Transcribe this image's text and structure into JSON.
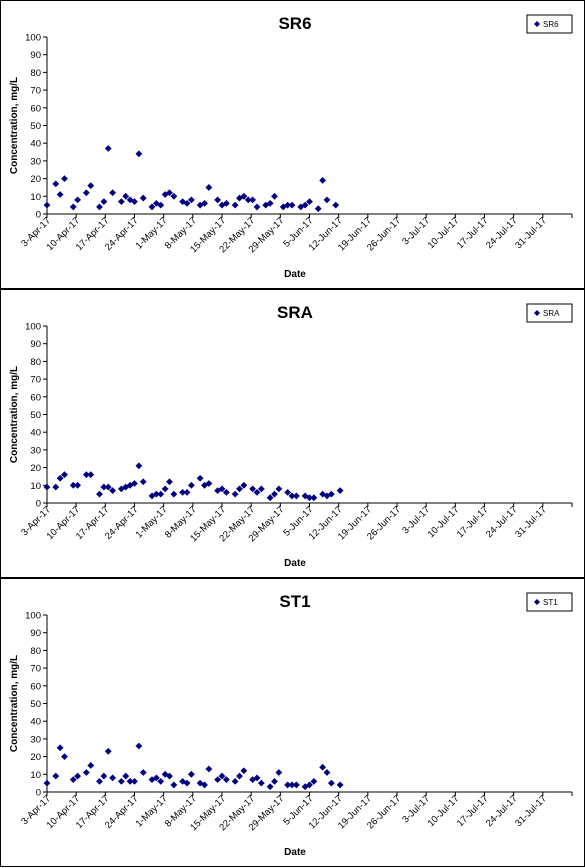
{
  "chart_data": [
    {
      "type": "scatter",
      "title": "SR6",
      "xlabel": "Date",
      "ylabel": "Concentration, mg/L",
      "ylim": [
        0,
        100
      ],
      "yticks": [
        "0",
        "10",
        "20",
        "30",
        "40",
        "50",
        "60",
        "70",
        "80",
        "90",
        "100"
      ],
      "xticks": [
        "3-Apr-17",
        "10-Apr-17",
        "17-Apr-17",
        "24-Apr-17",
        "1-May-17",
        "8-May-17",
        "15-May-17",
        "22-May-17",
        "29-May-17",
        "5-Jun-17",
        "12-Jun-17",
        "19-Jun-17",
        "26-Jun-17",
        "3-Jul-17",
        "10-Jul-17",
        "17-Jul-17",
        "24-Jul-17",
        "31-Jul-17"
      ],
      "xlim": [
        "2017-04-03",
        "2017-08-01"
      ],
      "legend_position": "top-right",
      "marker_color": "#000080",
      "series": [
        {
          "name": "SR6",
          "points": [
            [
              "2017-04-03",
              5
            ],
            [
              "2017-04-05",
              17
            ],
            [
              "2017-04-06",
              11
            ],
            [
              "2017-04-07",
              20
            ],
            [
              "2017-04-09",
              4
            ],
            [
              "2017-04-10",
              8
            ],
            [
              "2017-04-12",
              12
            ],
            [
              "2017-04-13",
              16
            ],
            [
              "2017-04-15",
              4
            ],
            [
              "2017-04-16",
              7
            ],
            [
              "2017-04-17",
              37
            ],
            [
              "2017-04-18",
              12
            ],
            [
              "2017-04-20",
              7
            ],
            [
              "2017-04-21",
              10
            ],
            [
              "2017-04-22",
              8
            ],
            [
              "2017-04-23",
              7
            ],
            [
              "2017-04-24",
              34
            ],
            [
              "2017-04-25",
              9
            ],
            [
              "2017-04-27",
              4
            ],
            [
              "2017-04-28",
              6
            ],
            [
              "2017-04-29",
              5
            ],
            [
              "2017-04-30",
              11
            ],
            [
              "2017-05-01",
              12
            ],
            [
              "2017-05-02",
              10
            ],
            [
              "2017-05-04",
              7
            ],
            [
              "2017-05-05",
              6
            ],
            [
              "2017-05-06",
              8
            ],
            [
              "2017-05-08",
              5
            ],
            [
              "2017-05-09",
              6
            ],
            [
              "2017-05-10",
              15
            ],
            [
              "2017-05-12",
              8
            ],
            [
              "2017-05-13",
              5
            ],
            [
              "2017-05-14",
              6
            ],
            [
              "2017-05-16",
              5
            ],
            [
              "2017-05-17",
              9
            ],
            [
              "2017-05-18",
              10
            ],
            [
              "2017-05-19",
              8
            ],
            [
              "2017-05-20",
              8
            ],
            [
              "2017-05-21",
              4
            ],
            [
              "2017-05-23",
              5
            ],
            [
              "2017-05-24",
              6
            ],
            [
              "2017-05-25",
              10
            ],
            [
              "2017-05-27",
              4
            ],
            [
              "2017-05-28",
              5
            ],
            [
              "2017-05-29",
              5
            ],
            [
              "2017-05-31",
              4
            ],
            [
              "2017-06-01",
              5
            ],
            [
              "2017-06-02",
              7
            ],
            [
              "2017-06-04",
              3
            ],
            [
              "2017-06-05",
              19
            ],
            [
              "2017-06-06",
              8
            ],
            [
              "2017-06-08",
              5
            ]
          ]
        }
      ]
    },
    {
      "type": "scatter",
      "title": "SRA",
      "xlabel": "Date",
      "ylabel": "Concentration, mg/L",
      "ylim": [
        0,
        100
      ],
      "yticks": [
        "0",
        "10",
        "20",
        "30",
        "40",
        "50",
        "60",
        "70",
        "80",
        "90",
        "100"
      ],
      "xticks": [
        "3-Apr-17",
        "10-Apr-17",
        "17-Apr-17",
        "24-Apr-17",
        "1-May-17",
        "8-May-17",
        "15-May-17",
        "22-May-17",
        "29-May-17",
        "5-Jun-17",
        "12-Jun-17",
        "19-Jun-17",
        "26-Jun-17",
        "3-Jul-17",
        "10-Jul-17",
        "17-Jul-17",
        "24-Jul-17",
        "31-Jul-17"
      ],
      "xlim": [
        "2017-04-03",
        "2017-08-01"
      ],
      "legend_position": "top-right",
      "marker_color": "#000080",
      "series": [
        {
          "name": "SRA",
          "points": [
            [
              "2017-04-03",
              9
            ],
            [
              "2017-04-05",
              9
            ],
            [
              "2017-04-06",
              14
            ],
            [
              "2017-04-07",
              16
            ],
            [
              "2017-04-09",
              10
            ],
            [
              "2017-04-10",
              10
            ],
            [
              "2017-04-12",
              16
            ],
            [
              "2017-04-13",
              16
            ],
            [
              "2017-04-15",
              5
            ],
            [
              "2017-04-16",
              9
            ],
            [
              "2017-04-17",
              9
            ],
            [
              "2017-04-18",
              7
            ],
            [
              "2017-04-20",
              8
            ],
            [
              "2017-04-21",
              9
            ],
            [
              "2017-04-22",
              10
            ],
            [
              "2017-04-23",
              11
            ],
            [
              "2017-04-24",
              21
            ],
            [
              "2017-04-25",
              12
            ],
            [
              "2017-04-27",
              4
            ],
            [
              "2017-04-28",
              5
            ],
            [
              "2017-04-29",
              5
            ],
            [
              "2017-04-30",
              8
            ],
            [
              "2017-05-01",
              12
            ],
            [
              "2017-05-02",
              5
            ],
            [
              "2017-05-04",
              6
            ],
            [
              "2017-05-05",
              6
            ],
            [
              "2017-05-06",
              10
            ],
            [
              "2017-05-08",
              14
            ],
            [
              "2017-05-09",
              10
            ],
            [
              "2017-05-10",
              11
            ],
            [
              "2017-05-12",
              7
            ],
            [
              "2017-05-13",
              8
            ],
            [
              "2017-05-14",
              6
            ],
            [
              "2017-05-16",
              5
            ],
            [
              "2017-05-17",
              8
            ],
            [
              "2017-05-18",
              10
            ],
            [
              "2017-05-20",
              8
            ],
            [
              "2017-05-21",
              6
            ],
            [
              "2017-05-22",
              8
            ],
            [
              "2017-05-24",
              3
            ],
            [
              "2017-05-25",
              5
            ],
            [
              "2017-05-26",
              8
            ],
            [
              "2017-05-28",
              6
            ],
            [
              "2017-05-29",
              4
            ],
            [
              "2017-05-30",
              4
            ],
            [
              "2017-06-01",
              4
            ],
            [
              "2017-06-02",
              3
            ],
            [
              "2017-06-03",
              3
            ],
            [
              "2017-06-05",
              5
            ],
            [
              "2017-06-06",
              4
            ],
            [
              "2017-06-07",
              5
            ],
            [
              "2017-06-09",
              7
            ]
          ]
        }
      ]
    },
    {
      "type": "scatter",
      "title": "ST1",
      "xlabel": "Date",
      "ylabel": "Concentration, mg/L",
      "ylim": [
        0,
        100
      ],
      "yticks": [
        "0",
        "10",
        "20",
        "30",
        "40",
        "50",
        "60",
        "70",
        "80",
        "90",
        "100"
      ],
      "xticks": [
        "3-Apr-17",
        "10-Apr-17",
        "17-Apr-17",
        "24-Apr-17",
        "1-May-17",
        "8-May-17",
        "15-May-17",
        "22-May-17",
        "29-May-17",
        "5-Jun-17",
        "12-Jun-17",
        "19-Jun-17",
        "26-Jun-17",
        "3-Jul-17",
        "10-Jul-17",
        "17-Jul-17",
        "24-Jul-17",
        "31-Jul-17"
      ],
      "xlim": [
        "2017-04-03",
        "2017-08-01"
      ],
      "legend_position": "top-right",
      "marker_color": "#000080",
      "series": [
        {
          "name": "ST1",
          "points": [
            [
              "2017-04-03",
              5
            ],
            [
              "2017-04-05",
              9
            ],
            [
              "2017-04-06",
              25
            ],
            [
              "2017-04-07",
              20
            ],
            [
              "2017-04-09",
              7
            ],
            [
              "2017-04-10",
              9
            ],
            [
              "2017-04-12",
              11
            ],
            [
              "2017-04-13",
              15
            ],
            [
              "2017-04-15",
              6
            ],
            [
              "2017-04-16",
              9
            ],
            [
              "2017-04-17",
              23
            ],
            [
              "2017-04-18",
              8
            ],
            [
              "2017-04-20",
              6
            ],
            [
              "2017-04-21",
              9
            ],
            [
              "2017-04-22",
              6
            ],
            [
              "2017-04-23",
              6
            ],
            [
              "2017-04-24",
              26
            ],
            [
              "2017-04-25",
              11
            ],
            [
              "2017-04-27",
              7
            ],
            [
              "2017-04-28",
              8
            ],
            [
              "2017-04-29",
              6
            ],
            [
              "2017-04-30",
              10
            ],
            [
              "2017-05-01",
              9
            ],
            [
              "2017-05-02",
              4
            ],
            [
              "2017-05-04",
              6
            ],
            [
              "2017-05-05",
              5
            ],
            [
              "2017-05-06",
              10
            ],
            [
              "2017-05-08",
              5
            ],
            [
              "2017-05-09",
              4
            ],
            [
              "2017-05-10",
              13
            ],
            [
              "2017-05-12",
              7
            ],
            [
              "2017-05-13",
              9
            ],
            [
              "2017-05-14",
              7
            ],
            [
              "2017-05-16",
              6
            ],
            [
              "2017-05-17",
              9
            ],
            [
              "2017-05-18",
              12
            ],
            [
              "2017-05-20",
              7
            ],
            [
              "2017-05-21",
              8
            ],
            [
              "2017-05-22",
              5
            ],
            [
              "2017-05-24",
              3
            ],
            [
              "2017-05-25",
              6
            ],
            [
              "2017-05-26",
              11
            ],
            [
              "2017-05-28",
              4
            ],
            [
              "2017-05-29",
              4
            ],
            [
              "2017-05-30",
              4
            ],
            [
              "2017-06-01",
              3
            ],
            [
              "2017-06-02",
              4
            ],
            [
              "2017-06-03",
              6
            ],
            [
              "2017-06-05",
              14
            ],
            [
              "2017-06-06",
              11
            ],
            [
              "2017-06-07",
              5
            ],
            [
              "2017-06-09",
              4
            ]
          ]
        }
      ]
    }
  ]
}
